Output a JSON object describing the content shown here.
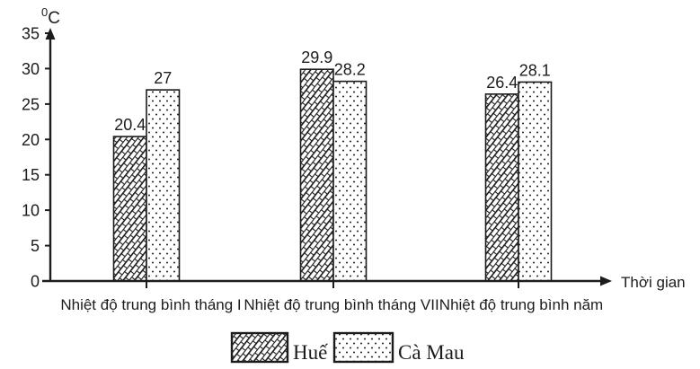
{
  "chart_data": {
    "type": "bar",
    "title": "",
    "y_axis": {
      "unit_sup": "0",
      "unit_main": "C",
      "ticks": [
        0,
        5,
        10,
        15,
        20,
        25,
        30,
        35
      ],
      "ylim": [
        0,
        35
      ]
    },
    "x_axis": {
      "label": "Thời gian",
      "categories": [
        "Nhiệt độ trung bình tháng I",
        "Nhiệt độ trung bình tháng VII",
        "Nhiệt độ trung bình năm"
      ]
    },
    "series": [
      {
        "name": "Huế",
        "pattern": "diagonal-brick",
        "values": [
          20.4,
          29.9,
          26.4
        ],
        "value_labels": [
          "20.4",
          "29.9",
          "26.4"
        ]
      },
      {
        "name": "Cà Mau",
        "pattern": "dots",
        "values": [
          27,
          28.2,
          28.1
        ],
        "value_labels": [
          "27",
          "28.2",
          "28.1"
        ]
      }
    ],
    "grid": false,
    "legend_position": "bottom",
    "colors": {
      "ink": "#1c1c1c",
      "bar_fill": "#ffffff",
      "background": "#ffffff"
    }
  }
}
